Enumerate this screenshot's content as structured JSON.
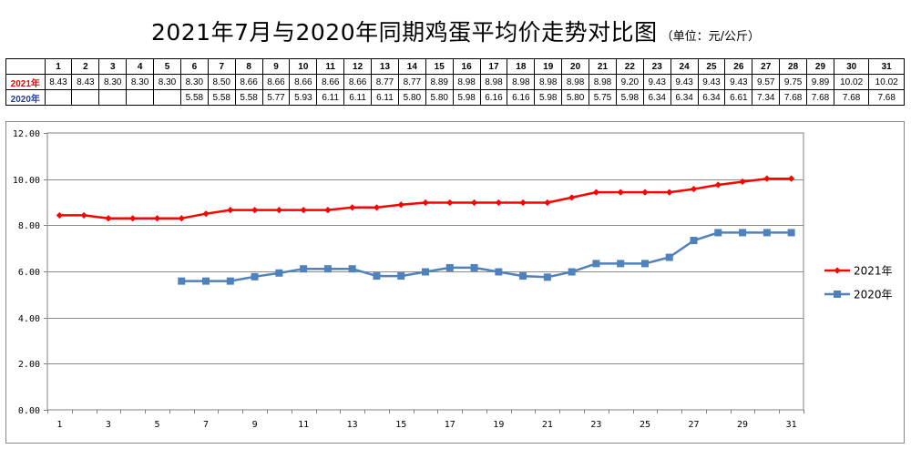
{
  "chart_data": {
    "type": "line",
    "title": "2021年7月与2020年同期鸡蛋平均价走势对比图",
    "unit": "（单位：元/公斤）",
    "categories": [
      1,
      2,
      3,
      4,
      5,
      6,
      7,
      8,
      9,
      10,
      11,
      12,
      13,
      14,
      15,
      16,
      17,
      18,
      19,
      20,
      21,
      22,
      23,
      24,
      25,
      26,
      27,
      28,
      29,
      30,
      31
    ],
    "x_tick_labels": [
      "1",
      "3",
      "5",
      "7",
      "9",
      "11",
      "13",
      "15",
      "17",
      "19",
      "21",
      "23",
      "25",
      "27",
      "29",
      "31"
    ],
    "y_tick_labels": [
      "12.00",
      "10.00",
      "8.00",
      "6.00",
      "4.00",
      "2.00",
      "0.00"
    ],
    "ylim": [
      0,
      12
    ],
    "grid": true,
    "legend_position": "right",
    "series": [
      {
        "name": "2021年",
        "color": "#ff0000",
        "marker": "diamond",
        "values": [
          8.43,
          8.43,
          8.3,
          8.3,
          8.3,
          8.3,
          8.5,
          8.66,
          8.66,
          8.66,
          8.66,
          8.66,
          8.77,
          8.77,
          8.89,
          8.98,
          8.98,
          8.98,
          8.98,
          8.98,
          8.98,
          9.2,
          9.43,
          9.43,
          9.43,
          9.43,
          9.57,
          9.75,
          9.89,
          10.02,
          10.02
        ]
      },
      {
        "name": "2020年",
        "color": "#4f81bd",
        "marker": "square",
        "values": [
          null,
          null,
          null,
          null,
          null,
          5.58,
          5.58,
          5.58,
          5.77,
          5.93,
          6.11,
          6.11,
          6.11,
          5.8,
          5.8,
          5.98,
          6.16,
          6.16,
          5.98,
          5.8,
          5.75,
          5.98,
          6.34,
          6.34,
          6.34,
          6.61,
          7.34,
          7.68,
          7.68,
          7.68,
          7.68
        ]
      }
    ]
  },
  "table": {
    "header": [
      "1",
      "2",
      "3",
      "4",
      "5",
      "6",
      "7",
      "8",
      "9",
      "10",
      "11",
      "12",
      "13",
      "14",
      "15",
      "16",
      "17",
      "18",
      "19",
      "20",
      "21",
      "22",
      "23",
      "24",
      "25",
      "26",
      "27",
      "28",
      "29",
      "30",
      "31"
    ],
    "rows": [
      {
        "label": "2021年",
        "cells": [
          "8.43",
          "8.43",
          "8.30",
          "8.30",
          "8.30",
          "8.30",
          "8.50",
          "8.66",
          "8.66",
          "8.66",
          "8.66",
          "8.66",
          "8.77",
          "8.77",
          "8.89",
          "8.98",
          "8.98",
          "8.98",
          "8.98",
          "8.98",
          "8.98",
          "9.20",
          "9.43",
          "9.43",
          "9.43",
          "9.43",
          "9.57",
          "9.75",
          "9.89",
          "10.02",
          "10.02"
        ]
      },
      {
        "label": "2020年",
        "cells": [
          "",
          "",
          "",
          "",
          "",
          "5.58",
          "5.58",
          "5.58",
          "5.77",
          "5.93",
          "6.11",
          "6.11",
          "6.11",
          "5.80",
          "5.80",
          "5.98",
          "6.16",
          "6.16",
          "5.98",
          "5.80",
          "5.75",
          "5.98",
          "6.34",
          "6.34",
          "6.34",
          "6.61",
          "7.34",
          "7.68",
          "7.68",
          "7.68",
          "7.68"
        ]
      }
    ]
  }
}
